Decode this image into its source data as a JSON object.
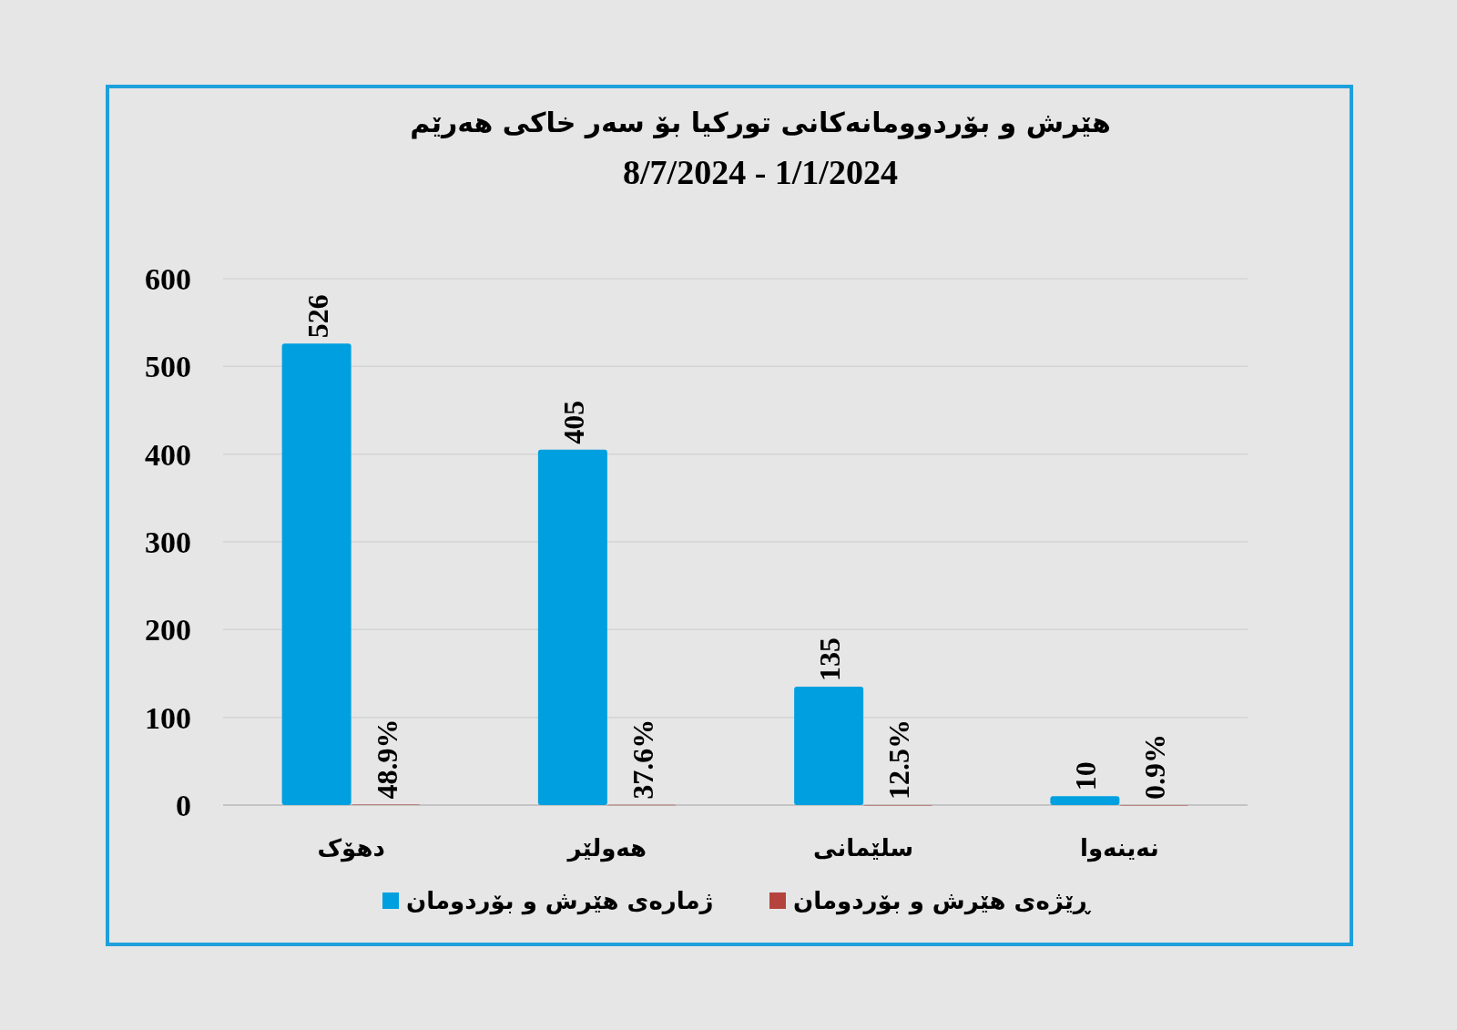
{
  "chart_data": {
    "type": "bar",
    "title": "هێرش و بۆردوومانەکانی تورکیا بۆ سەر خاکی هەرێم",
    "subtitle": "8/7/2024 - 1/1/2024",
    "categories": [
      "دهۆک",
      "هەولێر",
      "سلێمانی",
      "نەینەوا"
    ],
    "series": [
      {
        "name": "ژمارەی هێرش و بۆردومان",
        "color": "#00a0e0",
        "values": [
          526,
          405,
          135,
          10
        ],
        "value_labels": [
          "526",
          "405",
          "135",
          "10"
        ]
      },
      {
        "name": "ڕێژەی هێرش و بۆردومان",
        "color": "#b5433d",
        "values": [
          0.489,
          0.376,
          0.125,
          0.009
        ],
        "value_labels": [
          "48.9%",
          "37.6%",
          "12.5%",
          "0.9%"
        ]
      }
    ],
    "ylim": [
      0,
      600
    ],
    "yticks": [
      0,
      100,
      200,
      300,
      400,
      500,
      600
    ],
    "grid": "y",
    "legend": "bottom"
  }
}
